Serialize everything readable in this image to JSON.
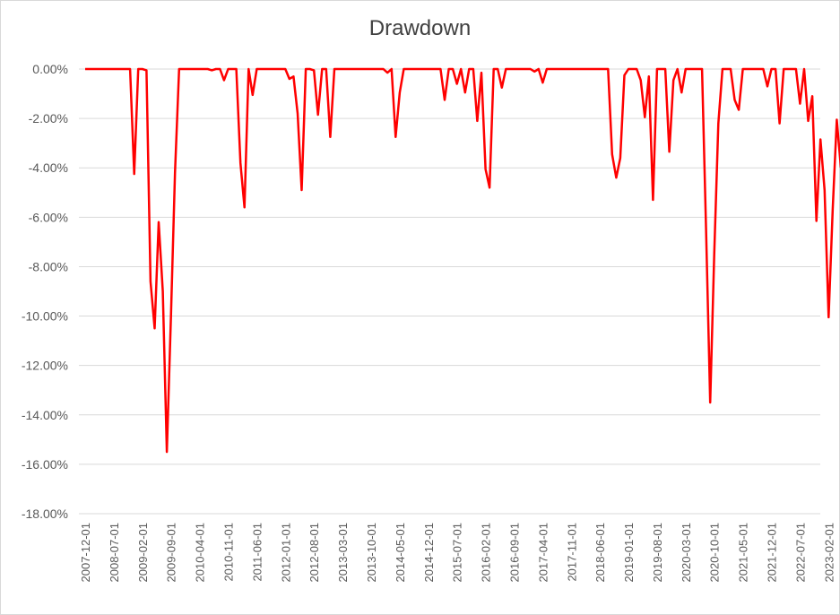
{
  "chart_data": {
    "type": "line",
    "title": "Drawdown",
    "xlabel": "",
    "ylabel": "",
    "ylim": [
      -0.18,
      0
    ],
    "grid": true,
    "legend": "none",
    "line_color": "#ff0000",
    "gridline_color": "#d9d9d9",
    "y_ticks": [
      "0.00%",
      "-2.00%",
      "-4.00%",
      "-6.00%",
      "-8.00%",
      "-10.00%",
      "-12.00%",
      "-14.00%",
      "-16.00%",
      "-18.00%"
    ],
    "y_tick_values": [
      0,
      -0.02,
      -0.04,
      -0.06,
      -0.08,
      -0.1,
      -0.12,
      -0.14,
      -0.16,
      -0.18
    ],
    "x_tick_labels": [
      "2007-12-01",
      "2008-07-01",
      "2009-02-01",
      "2009-09-01",
      "2010-04-01",
      "2010-11-01",
      "2011-06-01",
      "2012-01-01",
      "2012-08-01",
      "2013-03-01",
      "2013-10-01",
      "2014-05-01",
      "2014-12-01",
      "2015-07-01",
      "2016-02-01",
      "2016-09-01",
      "2017-04-01",
      "2017-11-01",
      "2018-06-01",
      "2019-01-01",
      "2019-08-01",
      "2020-03-01",
      "2020-10-01",
      "2021-05-01",
      "2021-12-01",
      "2022-07-01",
      "2023-02-01"
    ],
    "x_tick_dates": [
      "2007-12",
      "2008-07",
      "2009-02",
      "2009-09",
      "2010-04",
      "2010-11",
      "2011-06",
      "2012-01",
      "2012-08",
      "2013-03",
      "2013-10",
      "2014-05",
      "2014-12",
      "2015-07",
      "2016-02",
      "2016-09",
      "2017-04",
      "2017-11",
      "2018-06",
      "2019-01",
      "2019-08",
      "2020-03",
      "2020-10",
      "2021-05",
      "2021-12",
      "2022-07",
      "2023-02"
    ],
    "x_range": [
      "2007-12",
      "2023-05"
    ],
    "series": [
      {
        "points": [
          [
            "2007-12",
            0.0
          ],
          [
            "2008-11",
            0.0
          ],
          [
            "2008-12",
            -0.0425
          ],
          [
            "2009-01",
            0.0
          ],
          [
            "2009-02",
            0.0
          ],
          [
            "2009-03",
            -0.0005
          ],
          [
            "2009-04",
            -0.086
          ],
          [
            "2009-05",
            -0.105
          ],
          [
            "2009-06",
            -0.062
          ],
          [
            "2009-07",
            -0.09
          ],
          [
            "2009-08",
            -0.155
          ],
          [
            "2009-09",
            -0.1
          ],
          [
            "2009-10",
            -0.042
          ],
          [
            "2009-11",
            0.0
          ],
          [
            "2010-06",
            0.0
          ],
          [
            "2010-07",
            -0.0005
          ],
          [
            "2010-08",
            0.0
          ],
          [
            "2010-09",
            0.0
          ],
          [
            "2010-10",
            -0.0045
          ],
          [
            "2010-11",
            0.0
          ],
          [
            "2011-01",
            0.0
          ],
          [
            "2011-02",
            -0.038
          ],
          [
            "2011-03",
            -0.056
          ],
          [
            "2011-04",
            0.0
          ],
          [
            "2011-05",
            -0.0105
          ],
          [
            "2011-06",
            0.0
          ],
          [
            "2011-07",
            0.0
          ],
          [
            "2012-01",
            0.0
          ],
          [
            "2012-02",
            -0.004
          ],
          [
            "2012-03",
            -0.003
          ],
          [
            "2012-04",
            -0.018
          ],
          [
            "2012-05",
            -0.049
          ],
          [
            "2012-06",
            0.0
          ],
          [
            "2012-07",
            0.0
          ],
          [
            "2012-08",
            -0.0005
          ],
          [
            "2012-09",
            -0.0185
          ],
          [
            "2012-10",
            0.0
          ],
          [
            "2012-11",
            0.0
          ],
          [
            "2012-12",
            -0.0275
          ],
          [
            "2013-01",
            0.0
          ],
          [
            "2014-01",
            0.0
          ],
          [
            "2014-02",
            -0.0015
          ],
          [
            "2014-03",
            0.0
          ],
          [
            "2014-04",
            -0.0275
          ],
          [
            "2014-05",
            -0.0095
          ],
          [
            "2014-06",
            0.0
          ],
          [
            "2015-03",
            0.0
          ],
          [
            "2015-04",
            -0.0125
          ],
          [
            "2015-05",
            0.0
          ],
          [
            "2015-06",
            0.0
          ],
          [
            "2015-07",
            -0.006
          ],
          [
            "2015-08",
            0.0
          ],
          [
            "2015-09",
            -0.0095
          ],
          [
            "2015-10",
            0.0
          ],
          [
            "2015-11",
            0.0
          ],
          [
            "2015-12",
            -0.021
          ],
          [
            "2016-01",
            -0.0015
          ],
          [
            "2016-02",
            -0.0405
          ],
          [
            "2016-03",
            -0.048
          ],
          [
            "2016-04",
            0.0
          ],
          [
            "2016-05",
            0.0
          ],
          [
            "2016-06",
            -0.0075
          ],
          [
            "2016-07",
            0.0
          ],
          [
            "2017-01",
            0.0
          ],
          [
            "2017-02",
            -0.001
          ],
          [
            "2017-03",
            0.0
          ],
          [
            "2017-04",
            -0.0055
          ],
          [
            "2017-05",
            0.0
          ],
          [
            "2018-08",
            0.0
          ],
          [
            "2018-09",
            -0.0345
          ],
          [
            "2018-10",
            -0.044
          ],
          [
            "2018-11",
            -0.036
          ],
          [
            "2018-12",
            -0.0025
          ],
          [
            "2019-01",
            0.0
          ],
          [
            "2019-03",
            0.0
          ],
          [
            "2019-04",
            -0.0045
          ],
          [
            "2019-05",
            -0.0195
          ],
          [
            "2019-06",
            -0.003
          ],
          [
            "2019-07",
            -0.053
          ],
          [
            "2019-08",
            0.0
          ],
          [
            "2019-10",
            0.0
          ],
          [
            "2019-11",
            -0.0335
          ],
          [
            "2019-12",
            -0.0045
          ],
          [
            "2020-01",
            0.0
          ],
          [
            "2020-02",
            -0.0095
          ],
          [
            "2020-03",
            0.0
          ],
          [
            "2020-07",
            0.0
          ],
          [
            "2020-08",
            -0.065
          ],
          [
            "2020-09",
            -0.135
          ],
          [
            "2020-10",
            -0.075
          ],
          [
            "2020-11",
            -0.022
          ],
          [
            "2020-12",
            0.0
          ],
          [
            "2021-02",
            0.0
          ],
          [
            "2021-03",
            -0.0125
          ],
          [
            "2021-04",
            -0.0165
          ],
          [
            "2021-05",
            0.0
          ],
          [
            "2021-10",
            0.0
          ],
          [
            "2021-11",
            -0.007
          ],
          [
            "2021-12",
            0.0
          ],
          [
            "2022-01",
            0.0
          ],
          [
            "2022-02",
            -0.022
          ],
          [
            "2022-03",
            0.0
          ],
          [
            "2022-06",
            0.0
          ],
          [
            "2022-07",
            -0.014
          ],
          [
            "2022-08",
            0.0
          ],
          [
            "2022-09",
            -0.021
          ],
          [
            "2022-10",
            -0.011
          ],
          [
            "2022-11",
            -0.0615
          ],
          [
            "2022-12",
            -0.0285
          ],
          [
            "2023-01",
            -0.049
          ],
          [
            "2023-02",
            -0.1005
          ],
          [
            "2023-03",
            -0.0565
          ],
          [
            "2023-04",
            -0.0205
          ],
          [
            "2023-05",
            -0.04
          ]
        ]
      }
    ]
  }
}
